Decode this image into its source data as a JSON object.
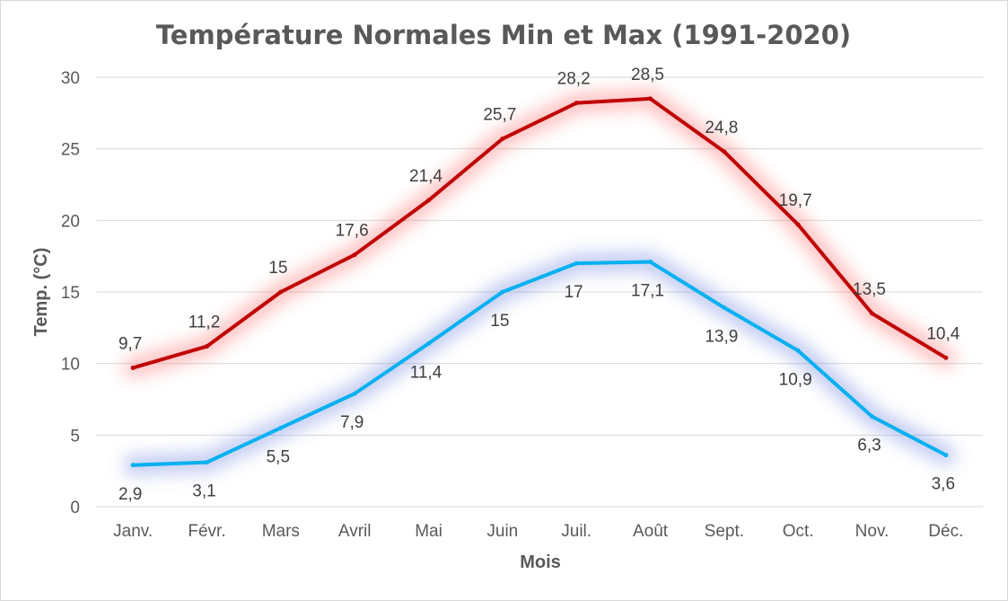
{
  "chart_data": {
    "type": "line",
    "title": "Température Normales Min et Max (1991-2020)",
    "xlabel": "Mois",
    "ylabel": "Temp. (°C)",
    "categories": [
      "Janv.",
      "Févr.",
      "Mars",
      "Avril",
      "Mai",
      "Juin",
      "Juil.",
      "Août",
      "Sept.",
      "Oct.",
      "Nov.",
      "Déc."
    ],
    "ylim": [
      0,
      30
    ],
    "yticks": [
      0,
      5,
      10,
      15,
      20,
      25,
      30
    ],
    "grid": true,
    "legend": "none",
    "series": [
      {
        "color": "#c00000",
        "glow": "#ff4d4d",
        "values": [
          9.7,
          11.2,
          15,
          17.6,
          21.4,
          25.7,
          28.2,
          28.5,
          24.8,
          19.7,
          13.5,
          10.4
        ],
        "labels": [
          "9,7",
          "11,2",
          "15",
          "17,6",
          "21,4",
          "25,7",
          "28,2",
          "28,5",
          "24,8",
          "19,7",
          "13,5",
          "10,4"
        ],
        "label_position": "above"
      },
      {
        "color": "#00b0f0",
        "glow": "#4d6bd6",
        "values": [
          2.9,
          3.1,
          5.5,
          7.9,
          11.4,
          15,
          17,
          17.1,
          13.9,
          10.9,
          6.3,
          3.6
        ],
        "labels": [
          "2,9",
          "3,1",
          "5,5",
          "7,9",
          "11,4",
          "15",
          "17",
          "17,1",
          "13,9",
          "10,9",
          "6,3",
          "3,6"
        ],
        "label_position": "below"
      }
    ]
  }
}
